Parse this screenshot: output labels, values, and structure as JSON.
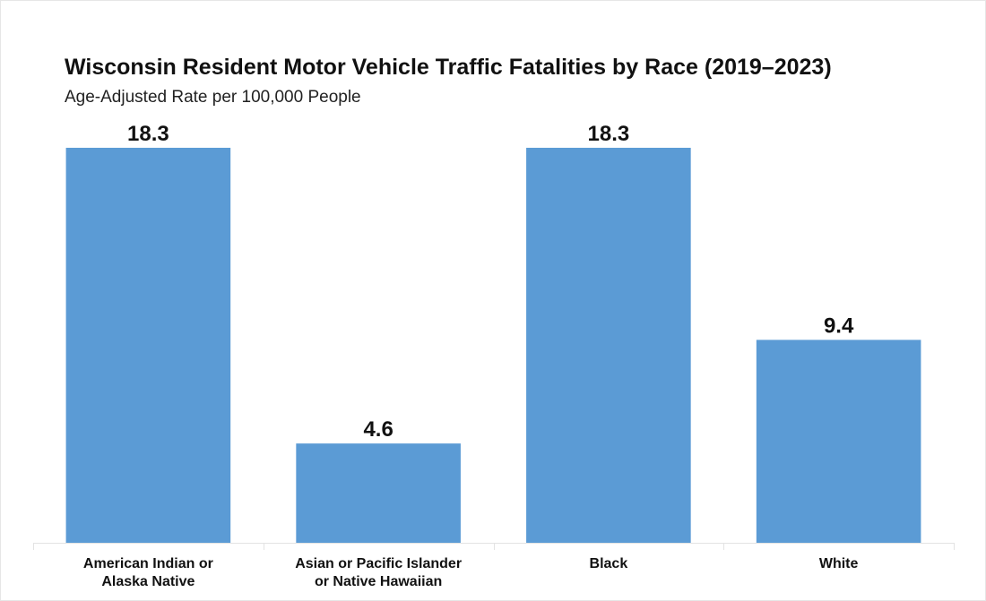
{
  "chart_data": {
    "type": "bar",
    "title": "Wisconsin Resident Motor Vehicle Traffic Fatalities by Race (2019–2023)",
    "subtitle": "Age-Adjusted Rate per 100,000 People",
    "xlabel": "",
    "ylabel": "",
    "categories": [
      [
        "American Indian or",
        "Alaska Native"
      ],
      [
        "Asian or Pacific Islander",
        "or Native Hawaiian"
      ],
      [
        "Black"
      ],
      [
        "White"
      ]
    ],
    "values": [
      18.3,
      4.6,
      18.3,
      9.4
    ],
    "data_labels": [
      "18.3",
      "4.6",
      "18.3",
      "9.4"
    ],
    "ylim": [
      0,
      18.3
    ],
    "grid": false,
    "legend": "none",
    "bar_color": "#5b9bd5"
  }
}
